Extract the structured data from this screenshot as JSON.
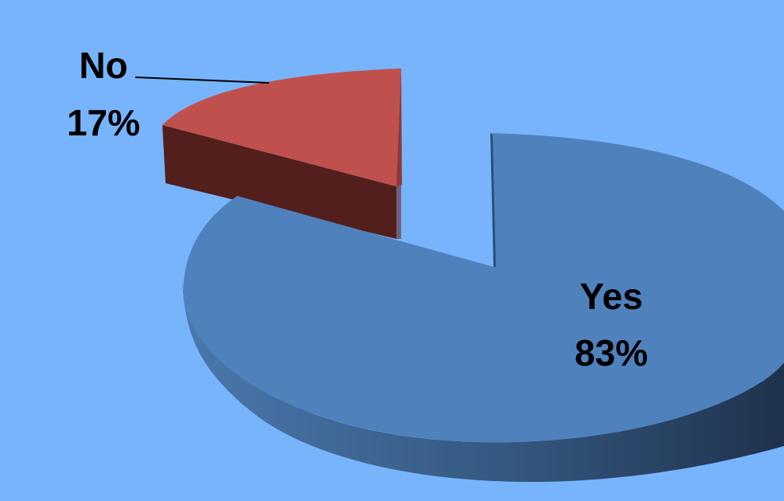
{
  "chart_data": {
    "type": "pie",
    "style": "3d-exploded",
    "slices": [
      {
        "label": "Yes",
        "value": 83,
        "percent_label": "83%",
        "color": "#4f81bd",
        "side_color": "#3a5f8c",
        "dark_color": "#1f3350"
      },
      {
        "label": "No",
        "value": 17,
        "percent_label": "17%",
        "color": "#c0504d",
        "side_color": "#521f1d",
        "dark_color": "#3a1515"
      }
    ],
    "legend": "none"
  }
}
